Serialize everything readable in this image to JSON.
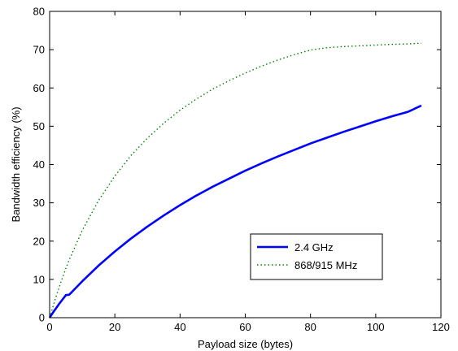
{
  "chart_data": {
    "type": "line",
    "title": "",
    "xlabel": "Payload size (bytes)",
    "ylabel": "Bandwidth efficiency (%)",
    "xlim": [
      0,
      120
    ],
    "ylim": [
      0,
      80
    ],
    "xticks": [
      0,
      20,
      40,
      60,
      80,
      100,
      120
    ],
    "yticks": [
      0,
      10,
      20,
      30,
      40,
      50,
      60,
      70,
      80
    ],
    "grid": false,
    "legend_position": "center-right",
    "series": [
      {
        "name": "2.4 GHz",
        "color": "#0000ff",
        "style": "solid",
        "x": [
          0,
          1,
          2,
          3,
          4,
          5,
          6,
          10,
          15,
          20,
          25,
          30,
          35,
          40,
          45,
          50,
          55,
          60,
          65,
          70,
          75,
          80,
          85,
          90,
          95,
          100,
          105,
          110,
          114
        ],
        "y": [
          0,
          1.3,
          2.5,
          3.7,
          4.8,
          5.9,
          6.0,
          9.5,
          13.6,
          17.3,
          20.7,
          23.8,
          26.7,
          29.4,
          31.9,
          34.2,
          36.3,
          38.4,
          40.3,
          42.1,
          43.8,
          45.5,
          47.0,
          48.5,
          49.9,
          51.3,
          52.6,
          53.8,
          55.4
        ]
      },
      {
        "name": "868/915 MHz",
        "color": "#008000",
        "style": "dotted",
        "x": [
          0,
          1,
          2,
          3,
          4,
          5,
          6,
          10,
          15,
          20,
          25,
          30,
          35,
          40,
          45,
          50,
          55,
          60,
          65,
          70,
          75,
          80,
          85,
          90,
          95,
          100,
          105,
          110,
          114
        ],
        "y": [
          0,
          2.8,
          5.6,
          8.1,
          10.6,
          12.9,
          15.1,
          22.8,
          30.6,
          37.0,
          42.4,
          46.9,
          50.8,
          54.2,
          57.1,
          59.7,
          61.9,
          63.9,
          65.7,
          67.3,
          68.7,
          69.9,
          70.5,
          70.8,
          71.0,
          71.2,
          71.4,
          71.5,
          71.7
        ]
      }
    ]
  }
}
